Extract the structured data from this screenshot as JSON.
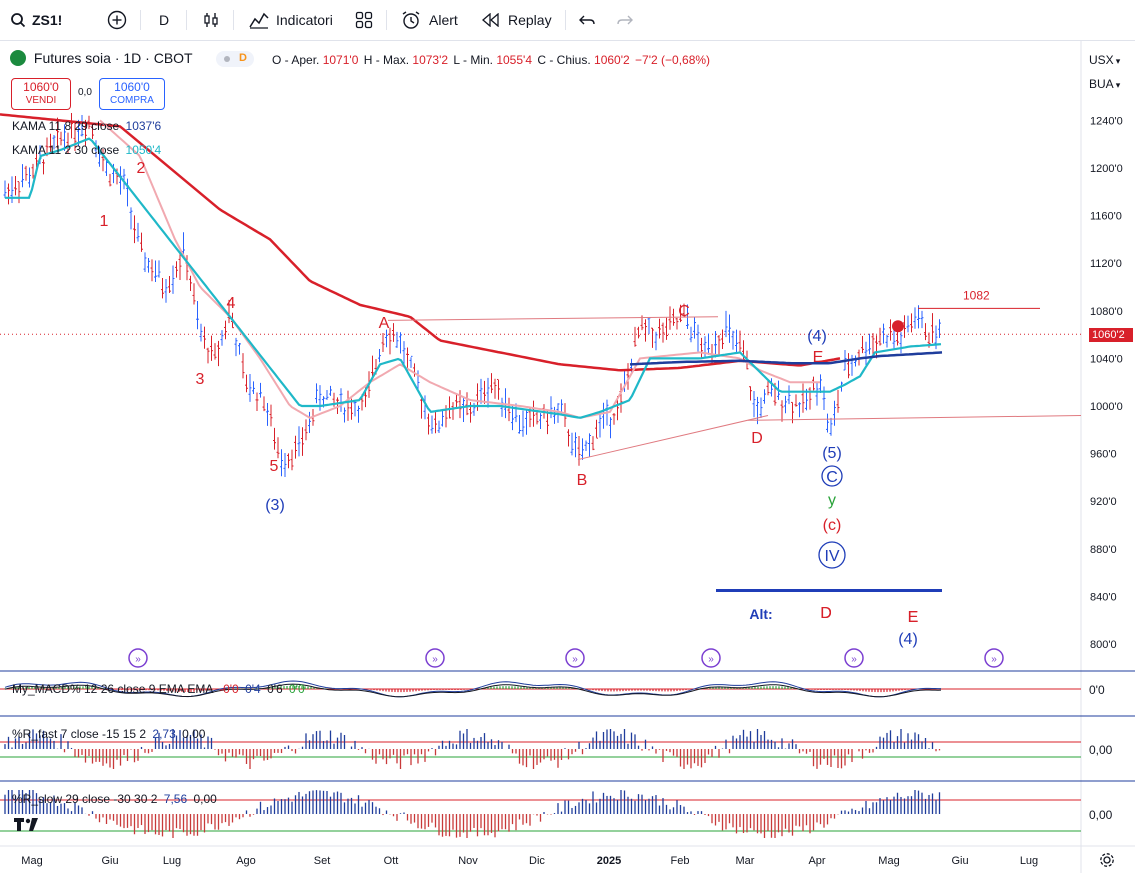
{
  "toolbar": {
    "symbol": "ZS1!",
    "interval": "D",
    "indicators_label": "Indicatori",
    "alert_label": "Alert",
    "replay_label": "Replay"
  },
  "header": {
    "title": "Futures soia · 1D · CBOT",
    "badge": "D",
    "ohlc": {
      "open_label": "O - Aper.",
      "open": "1071'0",
      "high_label": "H - Max.",
      "high": "1073'2",
      "low_label": "L - Min.",
      "low": "1055'4",
      "close_label": "C - Chius.",
      "close": "1060'2",
      "change": "−7'2 (−0,68%)"
    },
    "sell_price": "1060'0",
    "sell_label": "VENDI",
    "spread": "0,0",
    "buy_price": "1060'0",
    "buy_label": "COMPRA"
  },
  "legend": {
    "kama1": {
      "label": "KAMA 11 8 29 close",
      "value": "1037'6",
      "color": "#1f3d9c"
    },
    "kama2": {
      "label": "KAMA 11 2 30 close",
      "value": "1050'4",
      "color": "#1fb8c8"
    }
  },
  "right_axis": {
    "currency": "USX",
    "exchange": "BUA",
    "current_price": "1060'2",
    "ticks": [
      "1240'0",
      "1200'0",
      "1160'0",
      "1120'0",
      "1080'0",
      "1040'0",
      "1000'0",
      "960'0",
      "920'0",
      "880'0",
      "840'0",
      "800'0"
    ]
  },
  "annotations": {
    "level_label": "1082",
    "wave_labels": [
      "1",
      "2",
      "3",
      "4",
      "5",
      "(3)",
      "A",
      "B",
      "C",
      "D",
      "E",
      "(4)",
      "E",
      "D",
      "(5)",
      "C",
      "y",
      "(c)",
      "IV",
      "Alt:",
      "D",
      "E",
      "(4)"
    ]
  },
  "panes": {
    "macd": {
      "label": "My_MACD% 12 26 close 9 EMA EMA",
      "v1": "-0'0",
      "v2": "0'4",
      "v3": "0'6",
      "v4": "0'0",
      "axis": "0'0"
    },
    "rfast": {
      "label": "%R_fast 7 close -15 15 2",
      "v1": "2,73",
      "v2": "0,00",
      "axis": "0,00"
    },
    "rslow": {
      "label": "%R_slow 29 close -30 30 2",
      "v1": "7,56",
      "v2": "0,00",
      "axis": "0,00"
    }
  },
  "time_axis": [
    "Mag",
    "Giu",
    "Lug",
    "Ago",
    "Set",
    "Ott",
    "Nov",
    "Dic",
    "2025",
    "Feb",
    "Mar",
    "Apr",
    "Mag",
    "Giu",
    "Lug"
  ],
  "colors": {
    "kama_slow": "#1f3d9c",
    "kama_fast": "#1fb8c8",
    "ma_red": "#d8202a",
    "ma_pink": "#f1a9b0",
    "wave_red": "#d8202a",
    "wave_blue": "#1f3db8"
  }
}
